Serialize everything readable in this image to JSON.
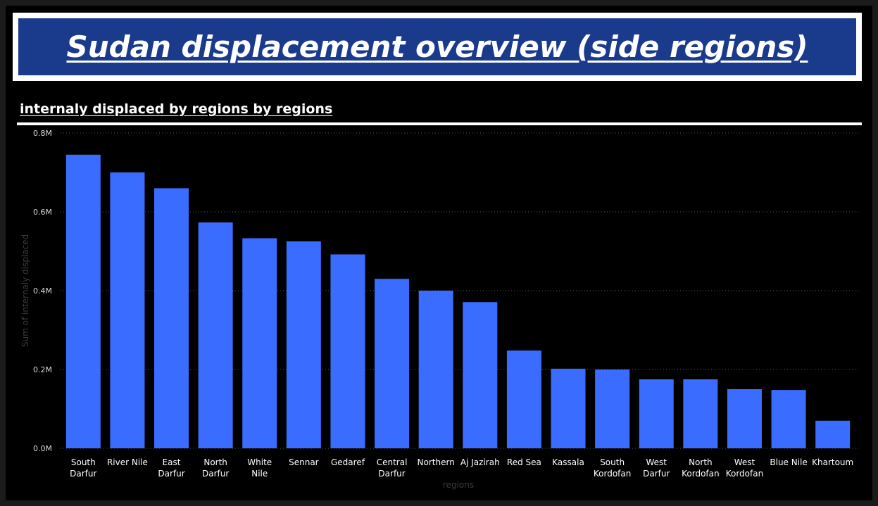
{
  "page": {
    "title": "Sudan displacement overview (side regions)"
  },
  "chart_header": "internaly displaced by regions by regions",
  "colors": {
    "bar": "#3a6cff",
    "title_bg": "#1a3a8c",
    "gridline": "#5a5a5a"
  },
  "chart_data": {
    "type": "bar",
    "title": "internaly displaced by regions by regions",
    "xlabel": "regions",
    "ylabel": "Sum of internaly displaced",
    "ylim": [
      0,
      800000
    ],
    "ticks": [
      {
        "value": 0,
        "label": "0.0M"
      },
      {
        "value": 200000,
        "label": "0.2M"
      },
      {
        "value": 400000,
        "label": "0.4M"
      },
      {
        "value": 600000,
        "label": "0.6M"
      },
      {
        "value": 800000,
        "label": "0.8M"
      }
    ],
    "grid": true,
    "categories": [
      [
        "South",
        "Darfur"
      ],
      [
        "River Nile"
      ],
      [
        "East",
        "Darfur"
      ],
      [
        "North",
        "Darfur"
      ],
      [
        "White",
        "Nile"
      ],
      [
        "Sennar"
      ],
      [
        "Gedaref"
      ],
      [
        "Central",
        "Darfur"
      ],
      [
        "Northern"
      ],
      [
        "Aj Jazirah"
      ],
      [
        "Red Sea"
      ],
      [
        "Kassala"
      ],
      [
        "South",
        "Kordofan"
      ],
      [
        "West",
        "Darfur"
      ],
      [
        "North",
        "Kordofan"
      ],
      [
        "West",
        "Kordofan"
      ],
      [
        "Blue Nile"
      ],
      [
        "Khartoum"
      ]
    ],
    "values": [
      745000,
      700000,
      660000,
      573000,
      533000,
      525000,
      492000,
      430000,
      400000,
      371000,
      248000,
      202000,
      200000,
      175000,
      175000,
      150000,
      148000,
      70000
    ]
  }
}
